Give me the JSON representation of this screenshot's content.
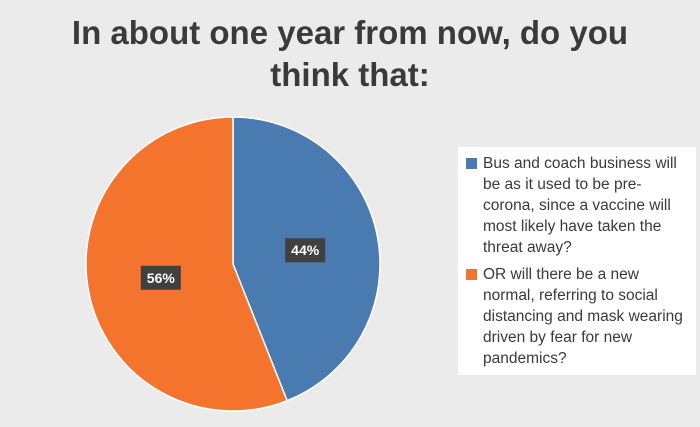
{
  "chart_data": {
    "type": "pie",
    "title": "In about one year from now, do you think that:",
    "slices": [
      {
        "label": "Bus and coach business will be as it used to be pre-corona, since a vaccine will most likely have taken the threat away?",
        "value": 44,
        "data_label": "44%",
        "color": "#4a7bb0"
      },
      {
        "label": "OR will there be a new normal, referring to social distancing and mask wearing driven by fear for new pandemics?",
        "value": 56,
        "data_label": "56%",
        "color": "#f4742e"
      }
    ],
    "legend_position": "right"
  }
}
